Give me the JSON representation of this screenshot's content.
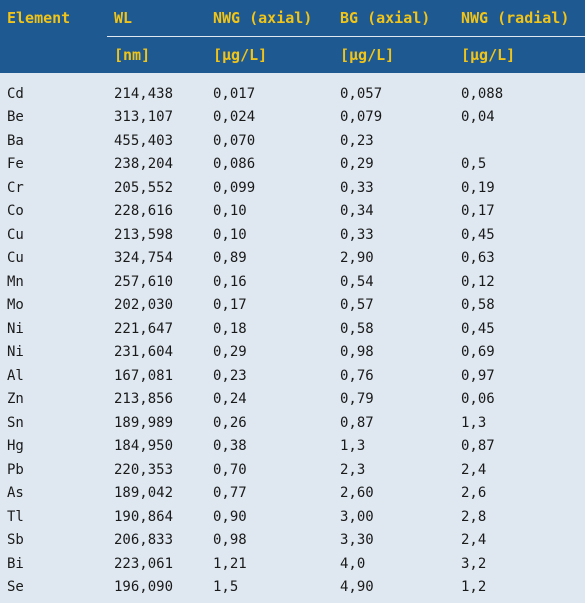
{
  "header": {
    "row1": [
      "Element",
      "WL",
      "NWG (axial)",
      "BG (axial)",
      "NWG (radial)"
    ],
    "row2": [
      "",
      "[nm]",
      "[µg/L]",
      "[µg/L]",
      "[µg/L]"
    ]
  },
  "rows": [
    [
      "Cd",
      "214,438",
      "0,017",
      "0,057",
      "0,088"
    ],
    [
      "Be",
      "313,107",
      "0,024",
      "0,079",
      "0,04"
    ],
    [
      "Ba",
      "455,403",
      "0,070",
      "0,23",
      ""
    ],
    [
      "Fe",
      "238,204",
      "0,086",
      "0,29",
      "0,5"
    ],
    [
      "Cr",
      "205,552",
      "0,099",
      "0,33",
      "0,19"
    ],
    [
      "Co",
      "228,616",
      "0,10",
      "0,34",
      "0,17"
    ],
    [
      "Cu",
      "213,598",
      "0,10",
      "0,33",
      "0,45"
    ],
    [
      "Cu",
      "324,754",
      "0,89",
      "2,90",
      "0,63"
    ],
    [
      "Mn",
      "257,610",
      "0,16",
      "0,54",
      "0,12"
    ],
    [
      "Mo",
      "202,030",
      "0,17",
      "0,57",
      "0,58"
    ],
    [
      "Ni",
      "221,647",
      "0,18",
      "0,58",
      "0,45"
    ],
    [
      "Ni",
      "231,604",
      "0,29",
      "0,98",
      "0,69"
    ],
    [
      "Al",
      "167,081",
      "0,23",
      "0,76",
      "0,97"
    ],
    [
      "Zn",
      "213,856",
      "0,24",
      "0,79",
      "0,06"
    ],
    [
      "Sn",
      "189,989",
      "0,26",
      "0,87",
      "1,3"
    ],
    [
      "Hg",
      "184,950",
      "0,38",
      "1,3",
      "0,87"
    ],
    [
      "Pb",
      "220,353",
      "0,70",
      "2,3",
      "2,4"
    ],
    [
      "As",
      "189,042",
      "0,77",
      "2,60",
      "2,6"
    ],
    [
      "Tl",
      "190,864",
      "0,90",
      "3,00",
      "2,8"
    ],
    [
      "Sb",
      "206,833",
      "0,98",
      "3,30",
      "2,4"
    ],
    [
      "Bi",
      "223,061",
      "1,21",
      "4,0",
      "3,2"
    ],
    [
      "Se",
      "196,090",
      "1,5",
      "4,90",
      "1,2"
    ]
  ],
  "colors": {
    "header_bg": "#1e5991",
    "header_text": "#f0c419",
    "body_bg": "#dfe8f1",
    "body_text": "#1a1a1a"
  }
}
